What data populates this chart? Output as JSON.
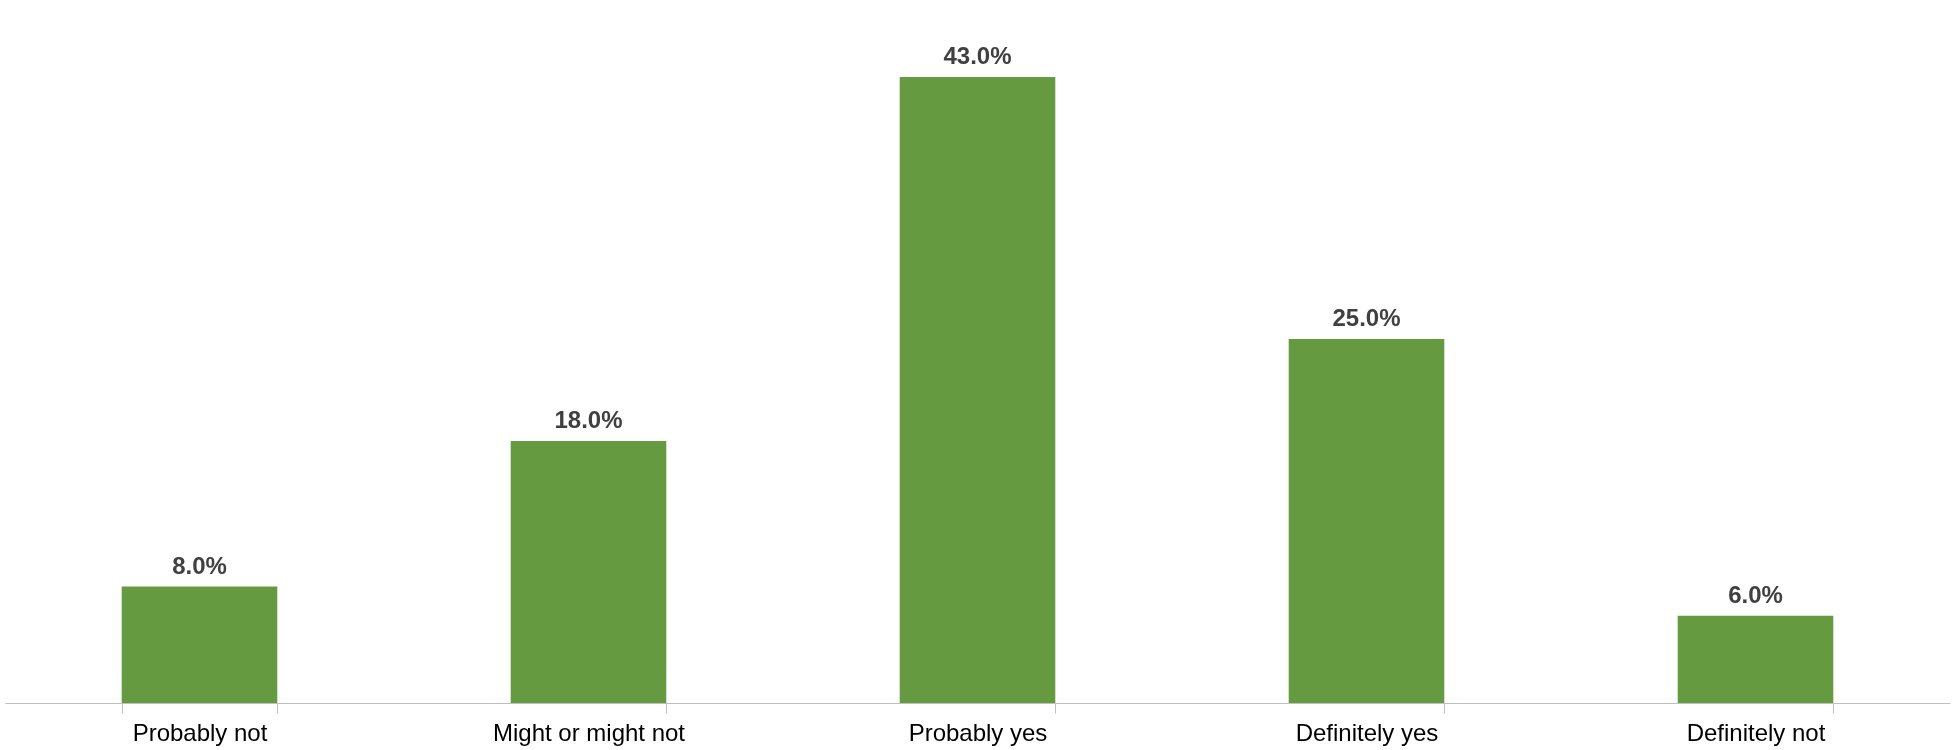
{
  "chart_data": {
    "type": "bar",
    "categories": [
      "Probably not",
      "Might or might not",
      "Probably yes",
      "Definitely yes",
      "Definitely not"
    ],
    "values": [
      8.0,
      18.0,
      43.0,
      25.0,
      6.0
    ],
    "value_labels": [
      "8.0%",
      "18.0%",
      "43.0%",
      "25.0%",
      "6.0%"
    ],
    "color": "#659a41",
    "grid": false
  }
}
